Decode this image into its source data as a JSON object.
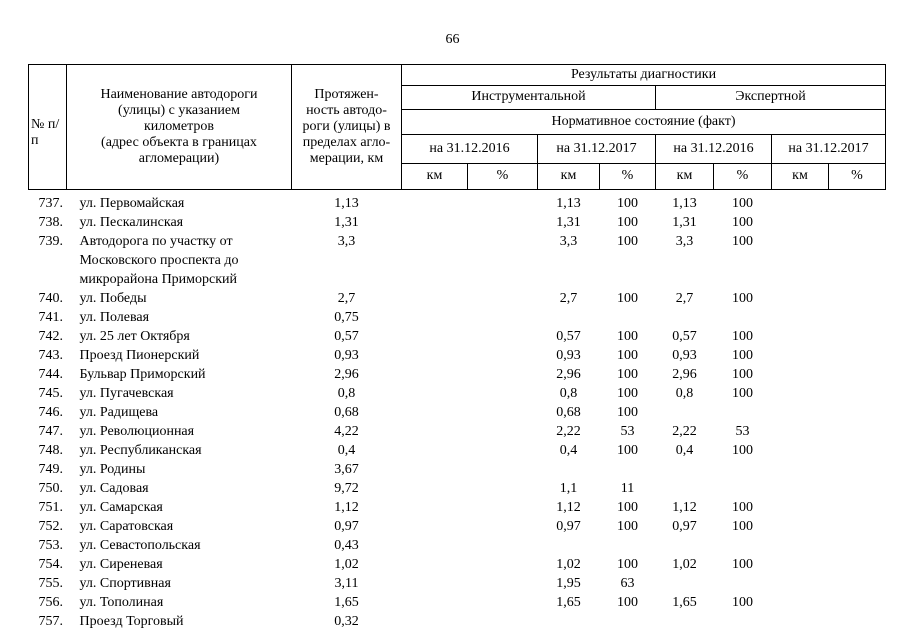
{
  "page": {
    "number": "66"
  },
  "table": {
    "headers": {
      "col_num": "№ п/п",
      "col_name": "Наименование автодороги\n(улицы) с указанием\nкилометров\n(адрес объекта в границах\nагломерации)",
      "col_length": "Протяжен-\nность автодо-\nроги (улицы) в\nпределах агло-\nмерации, км",
      "diagnostics": "Результаты диагностики",
      "instrumental": "Инструментальной",
      "expert": "Экспертной",
      "normative": "Нормативное состояние (факт)",
      "date_2016": "на 31.12.2016",
      "date_2017": "на 31.12.2017",
      "km": "км",
      "pct": "%"
    },
    "rows": [
      {
        "num": "737.",
        "name": "ул. Первомайская",
        "length": "1,13",
        "i16km": "",
        "i16pct": "",
        "i17km": "1,13",
        "i17pct": "100",
        "e16km": "1,13",
        "e16pct": "100",
        "e17km": "",
        "e17pct": ""
      },
      {
        "num": "738.",
        "name": "ул. Пескалинская",
        "length": "1,31",
        "i16km": "",
        "i16pct": "",
        "i17km": "1,31",
        "i17pct": "100",
        "e16km": "1,31",
        "e16pct": "100",
        "e17km": "",
        "e17pct": ""
      },
      {
        "num": "739.",
        "name": "Автодорога по участку от\nМосковского проспекта до\nмикрорайона Приморский",
        "length": "3,3",
        "i16km": "",
        "i16pct": "",
        "i17km": "3,3",
        "i17pct": "100",
        "e16km": "3,3",
        "e16pct": "100",
        "e17km": "",
        "e17pct": ""
      },
      {
        "num": "740.",
        "name": "ул. Победы",
        "length": "2,7",
        "i16km": "",
        "i16pct": "",
        "i17km": "2,7",
        "i17pct": "100",
        "e16km": "2,7",
        "e16pct": "100",
        "e17km": "",
        "e17pct": ""
      },
      {
        "num": "741.",
        "name": "ул. Полевая",
        "length": "0,75",
        "i16km": "",
        "i16pct": "",
        "i17km": "",
        "i17pct": "",
        "e16km": "",
        "e16pct": "",
        "e17km": "",
        "e17pct": ""
      },
      {
        "num": "742.",
        "name": "ул. 25 лет Октября",
        "length": "0,57",
        "i16km": "",
        "i16pct": "",
        "i17km": "0,57",
        "i17pct": "100",
        "e16km": "0,57",
        "e16pct": "100",
        "e17km": "",
        "e17pct": ""
      },
      {
        "num": "743.",
        "name": "Проезд Пионерский",
        "length": "0,93",
        "i16km": "",
        "i16pct": "",
        "i17km": "0,93",
        "i17pct": "100",
        "e16km": "0,93",
        "e16pct": "100",
        "e17km": "",
        "e17pct": ""
      },
      {
        "num": "744.",
        "name": "Бульвар Приморский",
        "length": "2,96",
        "i16km": "",
        "i16pct": "",
        "i17km": "2,96",
        "i17pct": "100",
        "e16km": "2,96",
        "e16pct": "100",
        "e17km": "",
        "e17pct": ""
      },
      {
        "num": "745.",
        "name": "ул. Пугачевская",
        "length": "0,8",
        "i16km": "",
        "i16pct": "",
        "i17km": "0,8",
        "i17pct": "100",
        "e16km": "0,8",
        "e16pct": "100",
        "e17km": "",
        "e17pct": ""
      },
      {
        "num": "746.",
        "name": "ул. Радищева",
        "length": "0,68",
        "i16km": "",
        "i16pct": "",
        "i17km": "0,68",
        "i17pct": "100",
        "e16km": "",
        "e16pct": "",
        "e17km": "",
        "e17pct": ""
      },
      {
        "num": "747.",
        "name": "ул. Революционная",
        "length": "4,22",
        "i16km": "",
        "i16pct": "",
        "i17km": "2,22",
        "i17pct": "53",
        "e16km": "2,22",
        "e16pct": "53",
        "e17km": "",
        "e17pct": ""
      },
      {
        "num": "748.",
        "name": "ул. Республиканская",
        "length": "0,4",
        "i16km": "",
        "i16pct": "",
        "i17km": "0,4",
        "i17pct": "100",
        "e16km": "0,4",
        "e16pct": "100",
        "e17km": "",
        "e17pct": ""
      },
      {
        "num": "749.",
        "name": "ул. Родины",
        "length": "3,67",
        "i16km": "",
        "i16pct": "",
        "i17km": "",
        "i17pct": "",
        "e16km": "",
        "e16pct": "",
        "e17km": "",
        "e17pct": ""
      },
      {
        "num": "750.",
        "name": "ул. Садовая",
        "length": "9,72",
        "i16km": "",
        "i16pct": "",
        "i17km": "1,1",
        "i17pct": "11",
        "e16km": "",
        "e16pct": "",
        "e17km": "",
        "e17pct": ""
      },
      {
        "num": "751.",
        "name": "ул. Самарская",
        "length": "1,12",
        "i16km": "",
        "i16pct": "",
        "i17km": "1,12",
        "i17pct": "100",
        "e16km": "1,12",
        "e16pct": "100",
        "e17km": "",
        "e17pct": ""
      },
      {
        "num": "752.",
        "name": "ул. Саратовская",
        "length": "0,97",
        "i16km": "",
        "i16pct": "",
        "i17km": "0,97",
        "i17pct": "100",
        "e16km": "0,97",
        "e16pct": "100",
        "e17km": "",
        "e17pct": ""
      },
      {
        "num": "753.",
        "name": "ул. Севастопольская",
        "length": "0,43",
        "i16km": "",
        "i16pct": "",
        "i17km": "",
        "i17pct": "",
        "e16km": "",
        "e16pct": "",
        "e17km": "",
        "e17pct": ""
      },
      {
        "num": "754.",
        "name": "ул. Сиреневая",
        "length": "1,02",
        "i16km": "",
        "i16pct": "",
        "i17km": "1,02",
        "i17pct": "100",
        "e16km": "1,02",
        "e16pct": "100",
        "e17km": "",
        "e17pct": ""
      },
      {
        "num": "755.",
        "name": "ул. Спортивная",
        "length": "3,11",
        "i16km": "",
        "i16pct": "",
        "i17km": "1,95",
        "i17pct": "63",
        "e16km": "",
        "e16pct": "",
        "e17km": "",
        "e17pct": ""
      },
      {
        "num": "756.",
        "name": "ул. Тополиная",
        "length": "1,65",
        "i16km": "",
        "i16pct": "",
        "i17km": "1,65",
        "i17pct": "100",
        "e16km": "1,65",
        "e16pct": "100",
        "e17km": "",
        "e17pct": ""
      },
      {
        "num": "757.",
        "name": "Проезд Торговый",
        "length": "0,32",
        "i16km": "",
        "i16pct": "",
        "i17km": "",
        "i17pct": "",
        "e16km": "",
        "e16pct": "",
        "e17km": "",
        "e17pct": ""
      }
    ]
  }
}
